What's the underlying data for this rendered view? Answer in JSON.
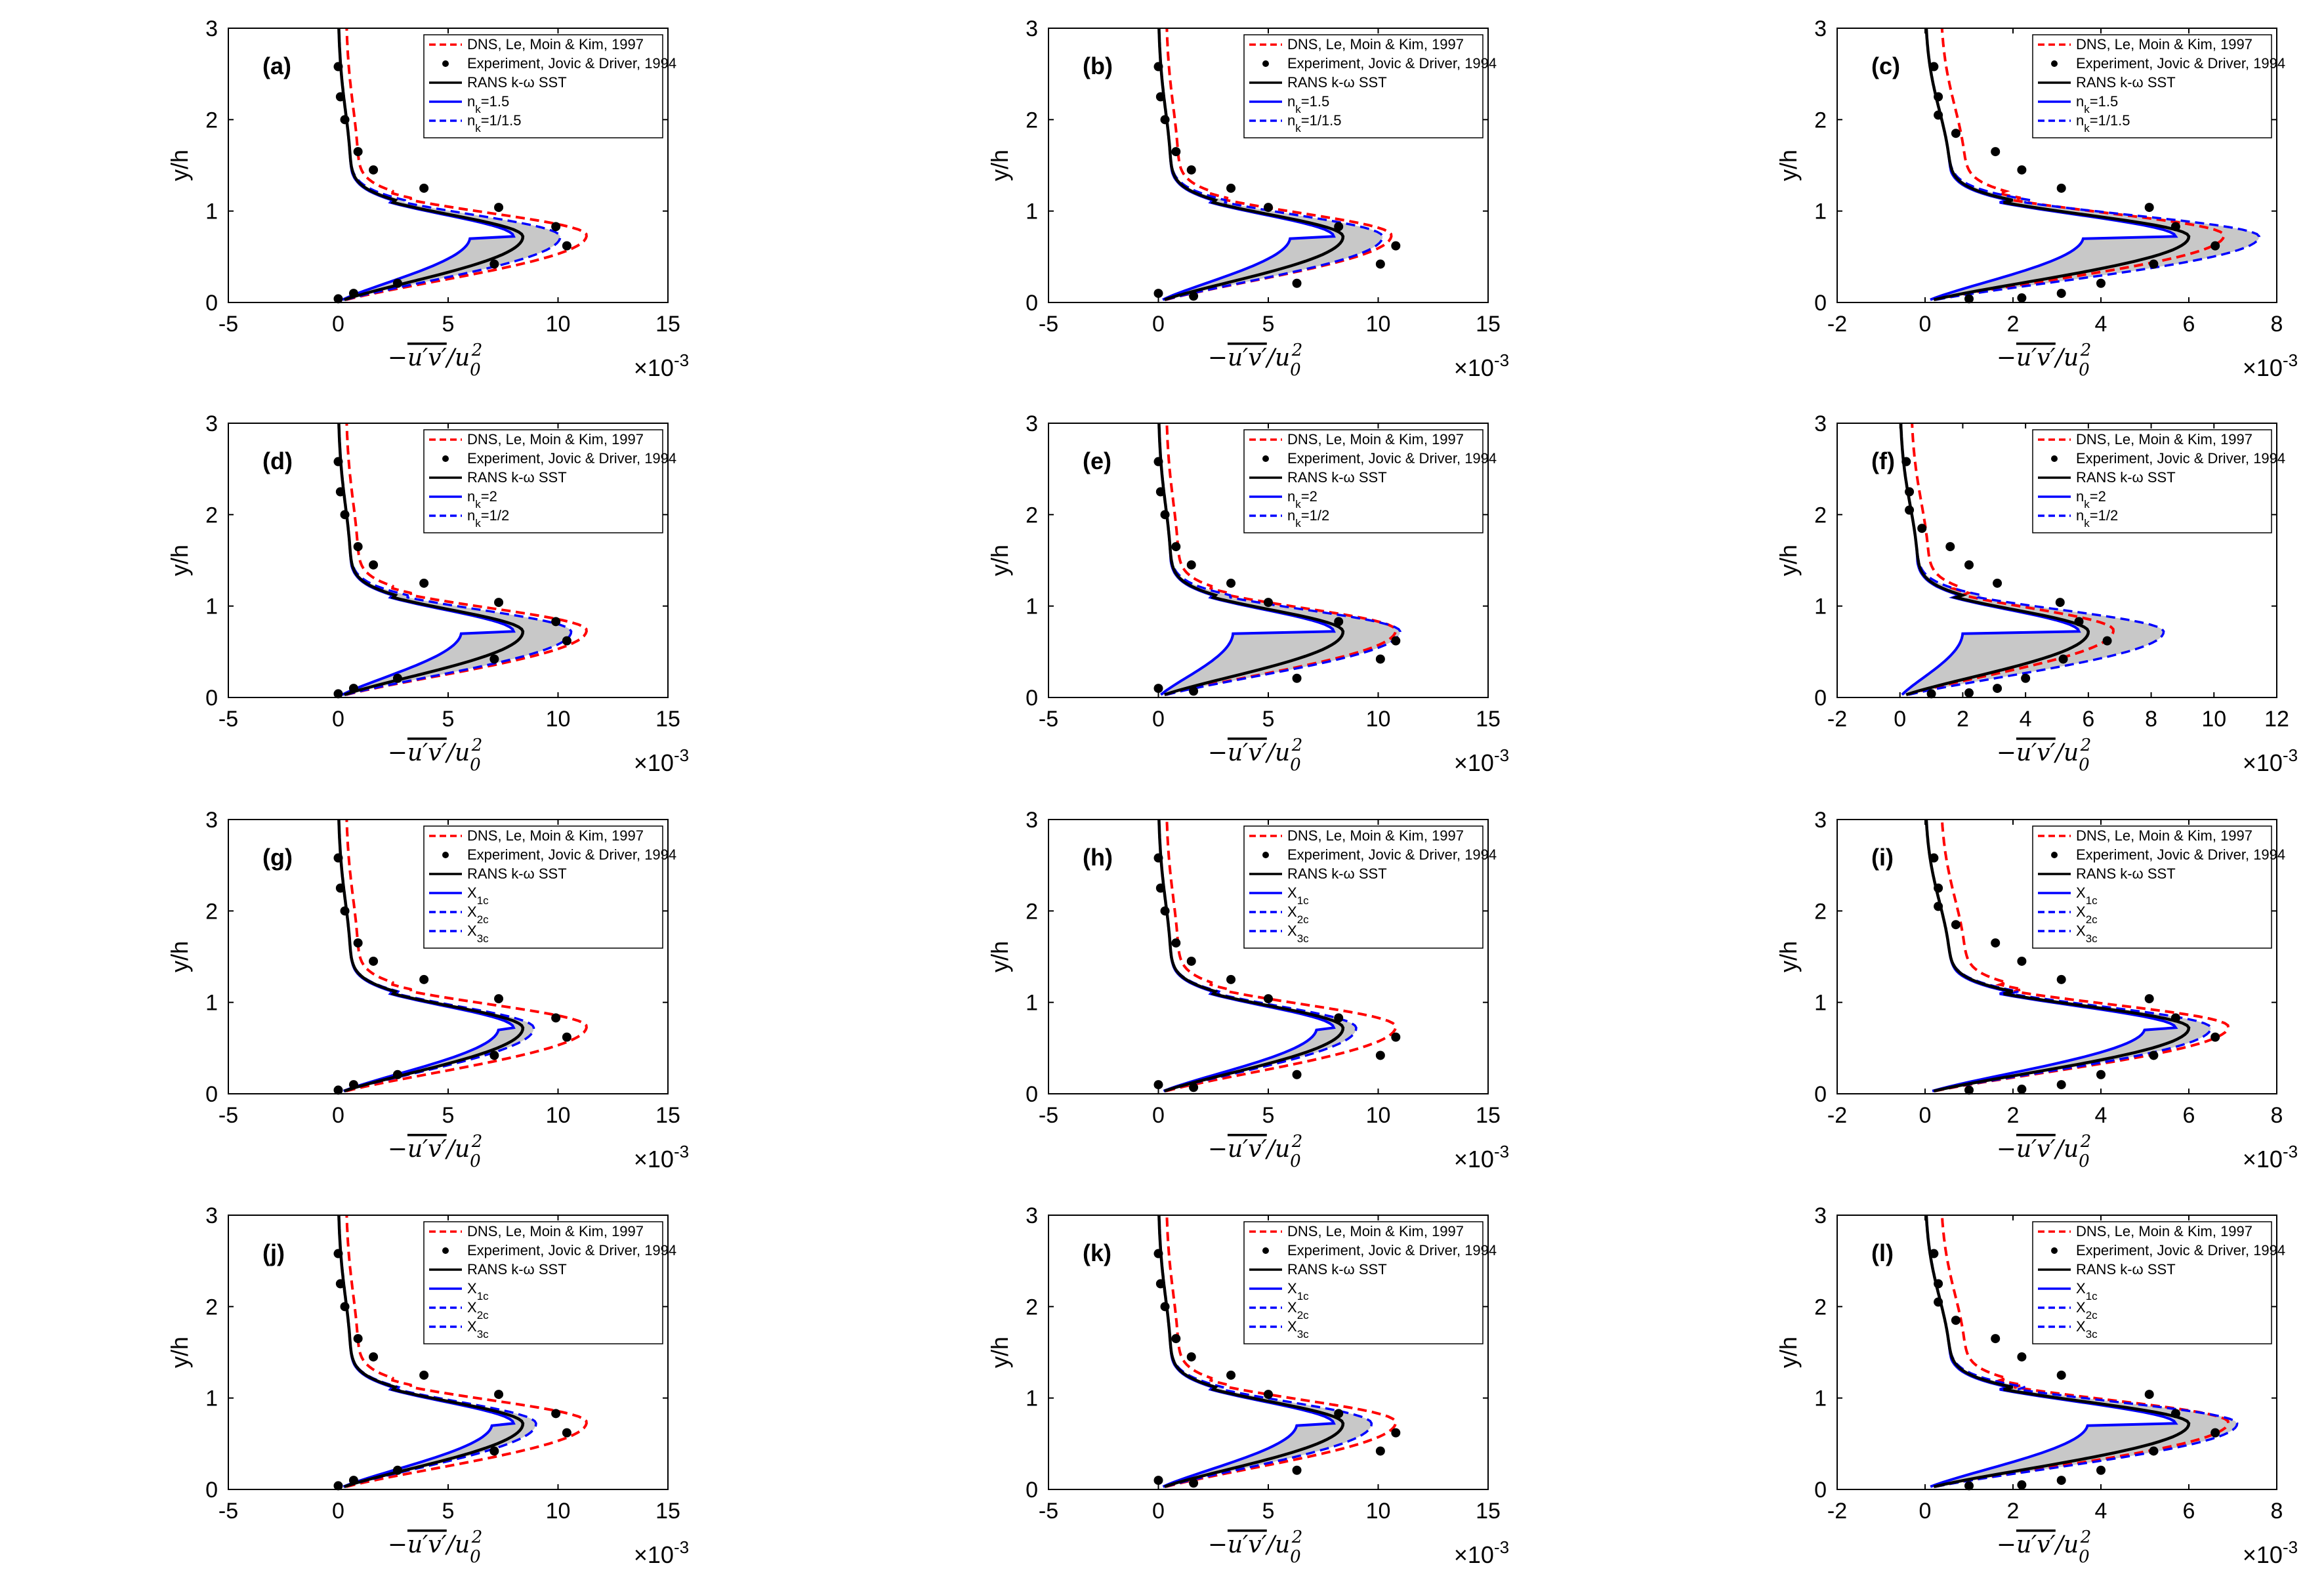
{
  "legend_common": {
    "dns": "DNS, Le, Moin & Kim, 1997",
    "exp": "Experiment, Jovic & Driver, 1994",
    "rans": "RANS k-ω SST"
  },
  "axis_text": {
    "ylabel": "y/h",
    "xlabel_minus": "−",
    "xlabel_core": "u′v′",
    "xlabel_over": "/u",
    "xlabel_sub": "0",
    "xlabel_sup": "2",
    "exp_base": "×10",
    "exp_pow": "-3"
  },
  "colors": {
    "dns": "#ff0000",
    "rans": "#000000",
    "blue": "#0000ff",
    "fill": "#c8c8c8",
    "exp": "#000000"
  },
  "chart_data": [
    {
      "label": "(a)",
      "type": "line",
      "xlim": [
        -5,
        15
      ],
      "xticks": [
        -5,
        0,
        5,
        10,
        15
      ],
      "ylim": [
        0,
        3
      ],
      "yticks": [
        0,
        1,
        2,
        3
      ],
      "peak": 8.4,
      "dns_peak": 11.3,
      "low_peak": 6.0,
      "high_peak": 10.1,
      "legend": [
        "n",
        "k",
        "=1.5",
        "n",
        "k",
        "=1/1.5"
      ],
      "exp": [
        [
          0,
          2.58
        ],
        [
          0.1,
          2.25
        ],
        [
          0.3,
          2.0
        ],
        [
          0.9,
          1.65
        ],
        [
          1.6,
          1.45
        ],
        [
          3.9,
          1.25
        ],
        [
          7.3,
          1.04
        ],
        [
          9.9,
          0.83
        ],
        [
          10.4,
          0.62
        ],
        [
          7.1,
          0.42
        ],
        [
          2.7,
          0.21
        ],
        [
          0.7,
          0.1
        ],
        [
          0,
          0.04
        ]
      ]
    },
    {
      "label": "(b)",
      "type": "line",
      "xlim": [
        -5,
        15
      ],
      "xticks": [
        -5,
        0,
        5,
        10,
        15
      ],
      "ylim": [
        0,
        3
      ],
      "yticks": [
        0,
        1,
        2,
        3
      ],
      "peak": 8.4,
      "dns_peak": 10.6,
      "low_peak": 6.0,
      "high_peak": 10.2,
      "legend": [
        "n",
        "k",
        "=1.5",
        "n",
        "k",
        "=1/1.5"
      ],
      "exp": [
        [
          0,
          2.58
        ],
        [
          0.1,
          2.25
        ],
        [
          0.3,
          2.0
        ],
        [
          0.8,
          1.65
        ],
        [
          1.5,
          1.45
        ],
        [
          3.3,
          1.25
        ],
        [
          5.0,
          1.04
        ],
        [
          8.2,
          0.83
        ],
        [
          10.8,
          0.62
        ],
        [
          10.1,
          0.42
        ],
        [
          6.3,
          0.21
        ],
        [
          1.6,
          0.07
        ],
        [
          0,
          0.1
        ]
      ]
    },
    {
      "label": "(c)",
      "type": "line",
      "xlim": [
        -2,
        8
      ],
      "xticks": [
        -2,
        0,
        2,
        4,
        6,
        8
      ],
      "ylim": [
        0,
        3
      ],
      "yticks": [
        0,
        1,
        2,
        3
      ],
      "peak": 6.0,
      "dns_peak": 6.8,
      "low_peak": 3.6,
      "high_peak": 7.6,
      "legend": [
        "n",
        "k",
        "=1.5",
        "n",
        "k",
        "=1/1.5"
      ],
      "exp": [
        [
          0.2,
          2.58
        ],
        [
          0.3,
          2.25
        ],
        [
          0.3,
          2.05
        ],
        [
          0.7,
          1.85
        ],
        [
          1.6,
          1.65
        ],
        [
          2.2,
          1.45
        ],
        [
          3.1,
          1.25
        ],
        [
          5.1,
          1.04
        ],
        [
          5.7,
          0.83
        ],
        [
          6.6,
          0.62
        ],
        [
          5.2,
          0.42
        ],
        [
          4.0,
          0.21
        ],
        [
          3.1,
          0.1
        ],
        [
          2.2,
          0.05
        ],
        [
          1.0,
          0.04
        ]
      ]
    },
    {
      "label": "(d)",
      "type": "line",
      "xlim": [
        -5,
        15
      ],
      "xticks": [
        -5,
        0,
        5,
        10,
        15
      ],
      "ylim": [
        0,
        3
      ],
      "yticks": [
        0,
        1,
        2,
        3
      ],
      "peak": 8.4,
      "dns_peak": 11.3,
      "low_peak": 5.6,
      "high_peak": 10.6,
      "legend": [
        "n",
        "k",
        "=2",
        "n",
        "k",
        "=1/2"
      ],
      "exp": [
        [
          0,
          2.58
        ],
        [
          0.1,
          2.25
        ],
        [
          0.3,
          2.0
        ],
        [
          0.9,
          1.65
        ],
        [
          1.6,
          1.45
        ],
        [
          3.9,
          1.25
        ],
        [
          7.3,
          1.04
        ],
        [
          9.9,
          0.83
        ],
        [
          10.4,
          0.62
        ],
        [
          7.1,
          0.42
        ],
        [
          2.7,
          0.21
        ],
        [
          0.7,
          0.1
        ],
        [
          0,
          0.04
        ]
      ]
    },
    {
      "label": "(e)",
      "type": "line",
      "xlim": [
        -5,
        15
      ],
      "xticks": [
        -5,
        0,
        5,
        10,
        15
      ],
      "ylim": [
        0,
        3
      ],
      "yticks": [
        0,
        1,
        2,
        3
      ],
      "peak": 8.4,
      "dns_peak": 10.8,
      "low_peak": 3.4,
      "high_peak": 11.0,
      "legend": [
        "n",
        "k",
        "=2",
        "n",
        "k",
        "=1/2"
      ],
      "exp": [
        [
          0,
          2.58
        ],
        [
          0.1,
          2.25
        ],
        [
          0.3,
          2.0
        ],
        [
          0.8,
          1.65
        ],
        [
          1.5,
          1.45
        ],
        [
          3.3,
          1.25
        ],
        [
          5.0,
          1.04
        ],
        [
          8.2,
          0.83
        ],
        [
          10.8,
          0.62
        ],
        [
          10.1,
          0.42
        ],
        [
          6.3,
          0.21
        ],
        [
          1.6,
          0.07
        ],
        [
          0,
          0.1
        ]
      ]
    },
    {
      "label": "(f)",
      "type": "line",
      "xlim": [
        -2,
        12
      ],
      "xticks": [
        -2,
        0,
        2,
        4,
        6,
        8,
        10,
        12
      ],
      "ylim": [
        0,
        3
      ],
      "yticks": [
        0,
        1,
        2,
        3
      ],
      "peak": 6.0,
      "dns_peak": 6.8,
      "low_peak": 2.0,
      "high_peak": 8.4,
      "legend": [
        "n",
        "k",
        "=2",
        "n",
        "k",
        "=1/2"
      ],
      "exp": [
        [
          0.2,
          2.58
        ],
        [
          0.3,
          2.25
        ],
        [
          0.3,
          2.05
        ],
        [
          0.7,
          1.85
        ],
        [
          1.6,
          1.65
        ],
        [
          2.2,
          1.45
        ],
        [
          3.1,
          1.25
        ],
        [
          5.1,
          1.04
        ],
        [
          5.7,
          0.83
        ],
        [
          6.6,
          0.62
        ],
        [
          5.2,
          0.42
        ],
        [
          4.0,
          0.21
        ],
        [
          3.1,
          0.1
        ],
        [
          2.2,
          0.05
        ],
        [
          1.0,
          0.04
        ]
      ]
    },
    {
      "label": "(g)",
      "type": "line",
      "xlim": [
        -5,
        15
      ],
      "xticks": [
        -5,
        0,
        5,
        10,
        15
      ],
      "ylim": [
        0,
        3
      ],
      "yticks": [
        0,
        1,
        2,
        3
      ],
      "peak": 8.4,
      "dns_peak": 11.3,
      "low_peak": 7.3,
      "high_peak": 8.9,
      "legend": [
        "X",
        "1c",
        "",
        "X",
        "2c",
        "",
        "X",
        "3c",
        ""
      ],
      "exp": [
        [
          0,
          2.58
        ],
        [
          0.1,
          2.25
        ],
        [
          0.3,
          2.0
        ],
        [
          0.9,
          1.65
        ],
        [
          1.6,
          1.45
        ],
        [
          3.9,
          1.25
        ],
        [
          7.3,
          1.04
        ],
        [
          9.9,
          0.83
        ],
        [
          10.4,
          0.62
        ],
        [
          7.1,
          0.42
        ],
        [
          2.7,
          0.21
        ],
        [
          0.7,
          0.1
        ],
        [
          0,
          0.04
        ]
      ]
    },
    {
      "label": "(h)",
      "type": "line",
      "xlim": [
        -5,
        15
      ],
      "xticks": [
        -5,
        0,
        5,
        10,
        15
      ],
      "ylim": [
        0,
        3
      ],
      "yticks": [
        0,
        1,
        2,
        3
      ],
      "peak": 8.4,
      "dns_peak": 10.8,
      "low_peak": 7.2,
      "high_peak": 9.0,
      "legend": [
        "X",
        "1c",
        "",
        "X",
        "2c",
        "",
        "X",
        "3c",
        ""
      ],
      "exp": [
        [
          0,
          2.58
        ],
        [
          0.1,
          2.25
        ],
        [
          0.3,
          2.0
        ],
        [
          0.8,
          1.65
        ],
        [
          1.5,
          1.45
        ],
        [
          3.3,
          1.25
        ],
        [
          5.0,
          1.04
        ],
        [
          8.2,
          0.83
        ],
        [
          10.8,
          0.62
        ],
        [
          10.1,
          0.42
        ],
        [
          6.3,
          0.21
        ],
        [
          1.6,
          0.07
        ],
        [
          0,
          0.1
        ]
      ]
    },
    {
      "label": "(i)",
      "type": "line",
      "xlim": [
        -2,
        8
      ],
      "xticks": [
        -2,
        0,
        2,
        4,
        6,
        8
      ],
      "ylim": [
        0,
        3
      ],
      "yticks": [
        0,
        1,
        2,
        3
      ],
      "peak": 6.0,
      "dns_peak": 6.9,
      "low_peak": 5.0,
      "high_peak": 6.5,
      "legend": [
        "X",
        "1c",
        "",
        "X",
        "2c",
        "",
        "X",
        "3c",
        ""
      ],
      "exp": [
        [
          0.2,
          2.58
        ],
        [
          0.3,
          2.25
        ],
        [
          0.3,
          2.05
        ],
        [
          0.7,
          1.85
        ],
        [
          1.6,
          1.65
        ],
        [
          2.2,
          1.45
        ],
        [
          3.1,
          1.25
        ],
        [
          5.1,
          1.04
        ],
        [
          5.7,
          0.83
        ],
        [
          6.6,
          0.62
        ],
        [
          5.2,
          0.42
        ],
        [
          4.0,
          0.21
        ],
        [
          3.1,
          0.1
        ],
        [
          2.2,
          0.05
        ],
        [
          1.0,
          0.04
        ]
      ]
    },
    {
      "label": "(j)",
      "type": "line",
      "xlim": [
        -5,
        15
      ],
      "xticks": [
        -5,
        0,
        5,
        10,
        15
      ],
      "ylim": [
        0,
        3
      ],
      "yticks": [
        0,
        1,
        2,
        3
      ],
      "peak": 8.4,
      "dns_peak": 11.3,
      "low_peak": 7.0,
      "high_peak": 9.0,
      "legend": [
        "X",
        "1c",
        "",
        "X",
        "2c",
        "",
        "X",
        "3c",
        ""
      ],
      "exp": [
        [
          0,
          2.58
        ],
        [
          0.1,
          2.25
        ],
        [
          0.3,
          2.0
        ],
        [
          0.9,
          1.65
        ],
        [
          1.6,
          1.45
        ],
        [
          3.9,
          1.25
        ],
        [
          7.3,
          1.04
        ],
        [
          9.9,
          0.83
        ],
        [
          10.4,
          0.62
        ],
        [
          7.1,
          0.42
        ],
        [
          2.7,
          0.21
        ],
        [
          0.7,
          0.1
        ],
        [
          0,
          0.04
        ]
      ]
    },
    {
      "label": "(k)",
      "type": "line",
      "xlim": [
        -5,
        15
      ],
      "xticks": [
        -5,
        0,
        5,
        10,
        15
      ],
      "ylim": [
        0,
        3
      ],
      "yticks": [
        0,
        1,
        2,
        3
      ],
      "peak": 8.4,
      "dns_peak": 10.8,
      "low_peak": 6.3,
      "high_peak": 9.7,
      "legend": [
        "X",
        "1c",
        "",
        "X",
        "2c",
        "",
        "X",
        "3c",
        ""
      ],
      "exp": [
        [
          0,
          2.58
        ],
        [
          0.1,
          2.25
        ],
        [
          0.3,
          2.0
        ],
        [
          0.8,
          1.65
        ],
        [
          1.5,
          1.45
        ],
        [
          3.3,
          1.25
        ],
        [
          5.0,
          1.04
        ],
        [
          8.2,
          0.83
        ],
        [
          10.8,
          0.62
        ],
        [
          10.1,
          0.42
        ],
        [
          6.3,
          0.21
        ],
        [
          1.6,
          0.07
        ],
        [
          0,
          0.1
        ]
      ]
    },
    {
      "label": "(l)",
      "type": "line",
      "xlim": [
        -2,
        8
      ],
      "xticks": [
        -2,
        0,
        2,
        4,
        6,
        8
      ],
      "ylim": [
        0,
        3
      ],
      "yticks": [
        0,
        1,
        2,
        3
      ],
      "peak": 6.0,
      "dns_peak": 6.9,
      "low_peak": 3.7,
      "high_peak": 7.1,
      "legend": [
        "X",
        "1c",
        "",
        "X",
        "2c",
        "",
        "X",
        "3c",
        ""
      ],
      "exp": [
        [
          0.2,
          2.58
        ],
        [
          0.3,
          2.25
        ],
        [
          0.3,
          2.05
        ],
        [
          0.7,
          1.85
        ],
        [
          1.6,
          1.65
        ],
        [
          2.2,
          1.45
        ],
        [
          3.1,
          1.25
        ],
        [
          5.1,
          1.04
        ],
        [
          5.7,
          0.83
        ],
        [
          6.6,
          0.62
        ],
        [
          5.2,
          0.42
        ],
        [
          4.0,
          0.21
        ],
        [
          3.1,
          0.1
        ],
        [
          2.2,
          0.05
        ],
        [
          1.0,
          0.04
        ]
      ]
    }
  ]
}
